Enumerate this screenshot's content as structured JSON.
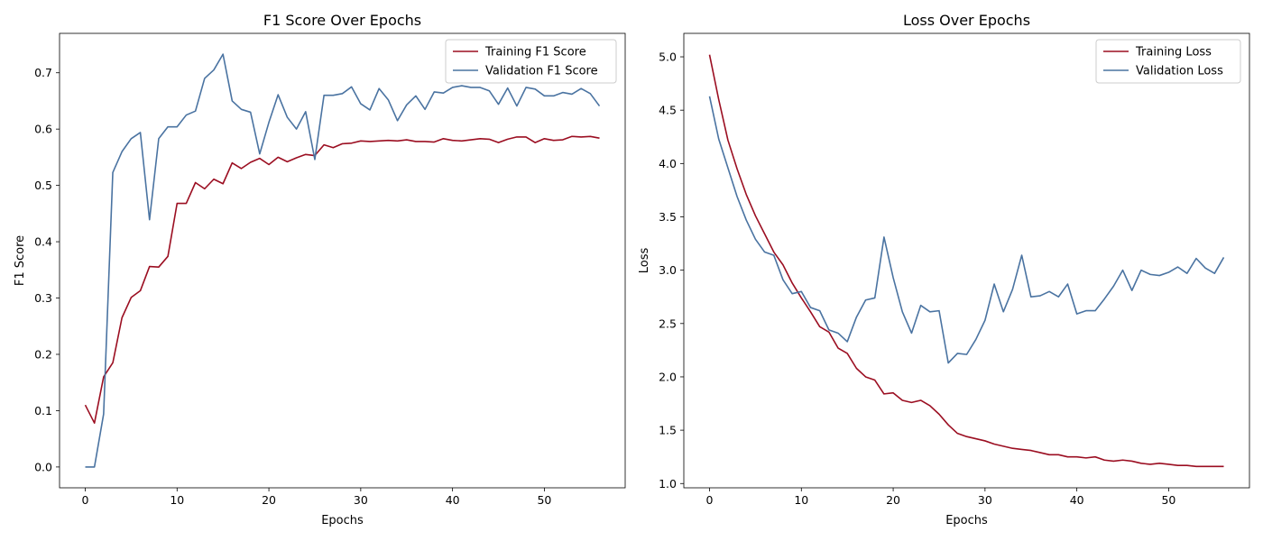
{
  "chart_data": [
    {
      "type": "line",
      "title": "F1 Score Over Epochs",
      "xlabel": "Epochs",
      "ylabel": "F1 Score",
      "xlim": [
        -2.8,
        58.8
      ],
      "ylim": [
        -0.037,
        0.77
      ],
      "xticks": [
        0,
        10,
        20,
        30,
        40,
        50
      ],
      "yticks": [
        0.0,
        0.1,
        0.2,
        0.3,
        0.4,
        0.5,
        0.6,
        0.7
      ],
      "ytick_decimals": 1,
      "legend": "top-right",
      "grid": false,
      "series": [
        {
          "name": "Training F1 Score",
          "color": "#9b0e21",
          "y": [
            0.11,
            0.078,
            0.16,
            0.185,
            0.265,
            0.301,
            0.313,
            0.356,
            0.355,
            0.374,
            0.468,
            0.468,
            0.505,
            0.494,
            0.511,
            0.503,
            0.54,
            0.53,
            0.541,
            0.548,
            0.537,
            0.55,
            0.542,
            0.549,
            0.555,
            0.553,
            0.572,
            0.567,
            0.574,
            0.575,
            0.579,
            0.578,
            0.579,
            0.58,
            0.579,
            0.581,
            0.578,
            0.578,
            0.577,
            0.583,
            0.58,
            0.579,
            0.581,
            0.583,
            0.582,
            0.576,
            0.582,
            0.586,
            0.586,
            0.576,
            0.583,
            0.58,
            0.581,
            0.587,
            0.586,
            0.587,
            0.584
          ]
        },
        {
          "name": "Validation F1 Score",
          "color": "#4a73a1",
          "y": [
            0.0,
            0.0,
            0.094,
            0.523,
            0.56,
            0.583,
            0.594,
            0.439,
            0.583,
            0.604,
            0.604,
            0.625,
            0.632,
            0.69,
            0.705,
            0.733,
            0.65,
            0.635,
            0.63,
            0.556,
            0.612,
            0.661,
            0.621,
            0.6,
            0.631,
            0.546,
            0.66,
            0.66,
            0.663,
            0.675,
            0.645,
            0.634,
            0.672,
            0.652,
            0.615,
            0.643,
            0.659,
            0.635,
            0.666,
            0.664,
            0.674,
            0.677,
            0.674,
            0.674,
            0.668,
            0.644,
            0.673,
            0.641,
            0.674,
            0.671,
            0.659,
            0.659,
            0.665,
            0.662,
            0.672,
            0.663,
            0.641
          ]
        }
      ]
    },
    {
      "type": "line",
      "title": "Loss Over Epochs",
      "xlabel": "Epochs",
      "ylabel": "Loss",
      "xlim": [
        -2.8,
        58.8
      ],
      "ylim": [
        0.96,
        5.22
      ],
      "xticks": [
        0,
        10,
        20,
        30,
        40,
        50
      ],
      "yticks": [
        1.0,
        1.5,
        2.0,
        2.5,
        3.0,
        3.5,
        4.0,
        4.5,
        5.0
      ],
      "ytick_decimals": 1,
      "legend": "top-right",
      "grid": false,
      "series": [
        {
          "name": "Training Loss",
          "color": "#9b0e21",
          "y": [
            5.02,
            4.6,
            4.22,
            3.95,
            3.71,
            3.51,
            3.34,
            3.17,
            3.05,
            2.88,
            2.74,
            2.61,
            2.47,
            2.42,
            2.27,
            2.22,
            2.08,
            2.0,
            1.97,
            1.84,
            1.85,
            1.78,
            1.76,
            1.78,
            1.73,
            1.65,
            1.55,
            1.47,
            1.44,
            1.42,
            1.4,
            1.37,
            1.35,
            1.33,
            1.32,
            1.31,
            1.29,
            1.27,
            1.27,
            1.25,
            1.25,
            1.24,
            1.25,
            1.22,
            1.21,
            1.22,
            1.21,
            1.19,
            1.18,
            1.19,
            1.18,
            1.17,
            1.17,
            1.16,
            1.16,
            1.16,
            1.16
          ]
        },
        {
          "name": "Validation Loss",
          "color": "#4a73a1",
          "y": [
            4.63,
            4.23,
            3.96,
            3.69,
            3.47,
            3.29,
            3.17,
            3.14,
            2.91,
            2.78,
            2.8,
            2.65,
            2.62,
            2.44,
            2.41,
            2.33,
            2.56,
            2.72,
            2.74,
            3.31,
            2.93,
            2.61,
            2.41,
            2.67,
            2.61,
            2.62,
            2.13,
            2.22,
            2.21,
            2.35,
            2.53,
            2.87,
            2.61,
            2.82,
            3.14,
            2.75,
            2.76,
            2.8,
            2.75,
            2.87,
            2.59,
            2.62,
            2.62,
            2.73,
            2.85,
            3.0,
            2.81,
            3.0,
            2.96,
            2.95,
            2.98,
            3.03,
            2.97,
            3.11,
            3.02,
            2.97,
            3.12
          ]
        }
      ]
    }
  ]
}
